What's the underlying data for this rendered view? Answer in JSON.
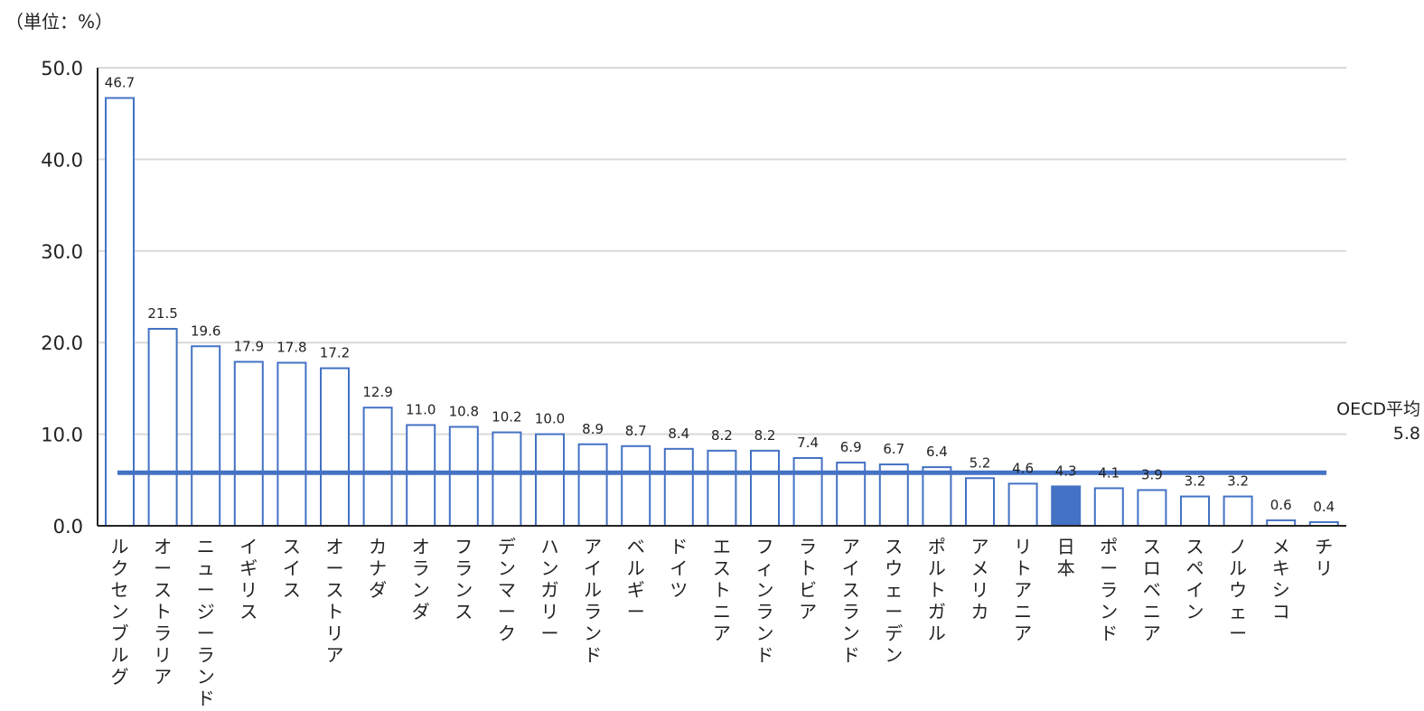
{
  "unit_label": "（単位：%）",
  "average_label": "OECD平均",
  "average_value_label": "5.8",
  "colors": {
    "bar_stroke": "#4472c4",
    "highlight_fill": "#4472c4",
    "average_line": "#4472c4",
    "grid": "#d9d9d9",
    "axis": "#222222"
  },
  "chart_data": {
    "type": "bar",
    "title": "",
    "xlabel": "",
    "ylabel": "",
    "ylim": [
      0,
      50
    ],
    "yticks": [
      "0.0",
      "10.0",
      "20.0",
      "30.0",
      "40.0",
      "50.0"
    ],
    "grid": true,
    "categories": [
      "ルクセンブルグ",
      "オーストラリア",
      "ニュージーランド",
      "イギリス",
      "スイス",
      "オーストリア",
      "カナダ",
      "オランダ",
      "フランス",
      "デンマーク",
      "ハンガリー",
      "アイルランド",
      "ベルギー",
      "ドイツ",
      "エストニア",
      "フィンランド",
      "ラトビア",
      "アイスランド",
      "スウェーデン",
      "ポルトガル",
      "アメリカ",
      "リトアニア",
      "日本",
      "ポーランド",
      "スロベニア",
      "スペイン",
      "ノルウェー",
      "メキシコ",
      "チリ"
    ],
    "values": [
      46.7,
      21.5,
      19.6,
      17.9,
      17.8,
      17.2,
      12.9,
      11.0,
      10.8,
      10.2,
      10.0,
      8.9,
      8.7,
      8.4,
      8.2,
      8.2,
      7.4,
      6.9,
      6.7,
      6.4,
      5.2,
      4.6,
      4.3,
      4.1,
      3.9,
      3.2,
      3.2,
      0.6,
      0.4
    ],
    "value_labels": [
      "46.7",
      "21.5",
      "19.6",
      "17.9",
      "17.8",
      "17.2",
      "12.9",
      "11.0",
      "10.8",
      "10.2",
      "10.0",
      "8.9",
      "8.7",
      "8.4",
      "8.2",
      "8.2",
      "7.4",
      "6.9",
      "6.7",
      "6.4",
      "5.2",
      "4.6",
      "4.3",
      "4.1",
      "3.9",
      "3.2",
      "3.2",
      "0.6",
      "0.4"
    ],
    "highlight": "日本",
    "reference_line": {
      "value": 5.8
    }
  }
}
